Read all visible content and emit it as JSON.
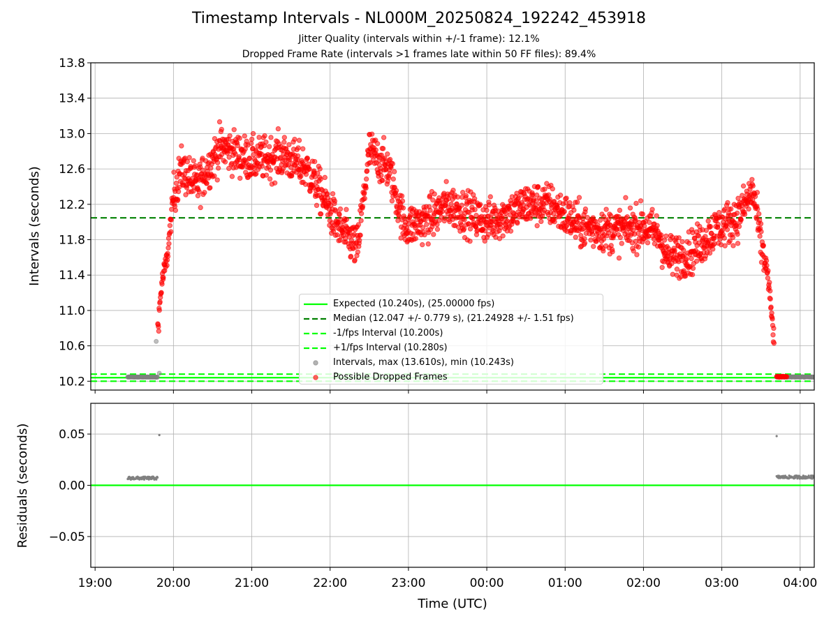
{
  "figure": {
    "title": "Timestamp Intervals - NL000M_20250824_192242_453918",
    "subtitle_1": "Jitter Quality (intervals within +/-1 frame): 12.1%",
    "subtitle_2": "Dropped Frame Rate (intervals >1 frames late within 50 FF files): 89.4%"
  },
  "chart_data": [
    {
      "type": "scatter",
      "ylabel": "Intervals (seconds)",
      "ylim": [
        10.1,
        13.8
      ],
      "yticks": [
        "10.2",
        "10.6",
        "11.0",
        "11.4",
        "11.8",
        "12.2",
        "12.6",
        "13.0",
        "13.4",
        "13.8"
      ],
      "grid": true,
      "legend_placement": "lower-center",
      "lines": [
        {
          "name": "Expected (10.240s), (25.00000 fps)",
          "y": 10.24,
          "color": "#00ff00",
          "style": "solid"
        },
        {
          "name": "Median (12.047 +/- 0.779 s), (21.24928 +/- 1.51 fps)",
          "y": 12.047,
          "color": "#008000",
          "style": "dashed"
        },
        {
          "name": "-1/fps Interval (10.200s)",
          "y": 10.2,
          "color": "#00ff00",
          "style": "dashed"
        },
        {
          "name": "+1/fps Interval (10.280s)",
          "y": 10.28,
          "color": "#00ff00",
          "style": "dashed"
        }
      ],
      "series": [
        {
          "name": "Intervals, max (13.610s), min (10.243s)",
          "color": "#808080",
          "segments": [
            {
              "start": "19:25",
              "end": "19:48",
              "y_mean": 10.247,
              "y_spread": 0.004
            },
            {
              "start": "03:42",
              "end": "04:12",
              "y_mean": 10.248,
              "y_spread": 0.006
            }
          ],
          "outliers": [
            [
              19.78,
              10.65
            ],
            [
              19.82,
              10.29
            ]
          ]
        },
        {
          "name": "Possible Dropped Frames",
          "color": "#ff0000",
          "trend": [
            [
              19.8,
              10.8
            ],
            [
              19.85,
              11.3
            ],
            [
              19.92,
              11.6
            ],
            [
              20.0,
              12.3
            ],
            [
              20.1,
              12.6
            ],
            [
              20.3,
              12.4
            ],
            [
              20.6,
              12.85
            ],
            [
              21.0,
              12.7
            ],
            [
              21.4,
              12.75
            ],
            [
              21.7,
              12.6
            ],
            [
              21.9,
              12.3
            ],
            [
              22.1,
              11.95
            ],
            [
              22.35,
              11.7
            ],
            [
              22.5,
              12.8
            ],
            [
              22.75,
              12.6
            ],
            [
              22.95,
              11.95
            ],
            [
              23.2,
              12.0
            ],
            [
              23.5,
              12.2
            ],
            [
              24.0,
              12.0
            ],
            [
              24.3,
              12.1
            ],
            [
              24.5,
              12.2
            ],
            [
              24.8,
              12.2
            ],
            [
              25.2,
              11.95
            ],
            [
              25.6,
              11.9
            ],
            [
              26.0,
              11.95
            ],
            [
              26.2,
              11.85
            ],
            [
              26.3,
              11.6
            ],
            [
              26.6,
              11.65
            ],
            [
              26.9,
              11.9
            ],
            [
              27.2,
              12.05
            ],
            [
              27.4,
              12.35
            ],
            [
              27.5,
              11.75
            ],
            [
              27.58,
              11.45
            ],
            [
              27.63,
              11.0
            ],
            [
              27.67,
              10.65
            ]
          ],
          "late_cluster": {
            "start": "03:42",
            "end": "03:50",
            "y": 10.25
          }
        }
      ]
    },
    {
      "type": "scatter",
      "xlabel": "Time (UTC)",
      "ylabel": "Residuals (seconds)",
      "ylim": [
        -0.08,
        0.08
      ],
      "yticks": [
        "−0.05",
        "0.00",
        "0.05"
      ],
      "xticks": [
        "19:00",
        "20:00",
        "21:00",
        "22:00",
        "23:00",
        "00:00",
        "01:00",
        "02:00",
        "03:00",
        "04:00"
      ],
      "zero_line_color": "#00ff00",
      "series": [
        {
          "color": "#808080",
          "segments": [
            {
              "start": "19:25",
              "end": "19:48",
              "y": 0.007
            },
            {
              "start": "03:42",
              "end": "04:12",
              "y": 0.008
            }
          ],
          "outliers": [
            [
              19.82,
              0.049
            ],
            [
              27.7,
              0.048
            ]
          ]
        }
      ]
    }
  ]
}
